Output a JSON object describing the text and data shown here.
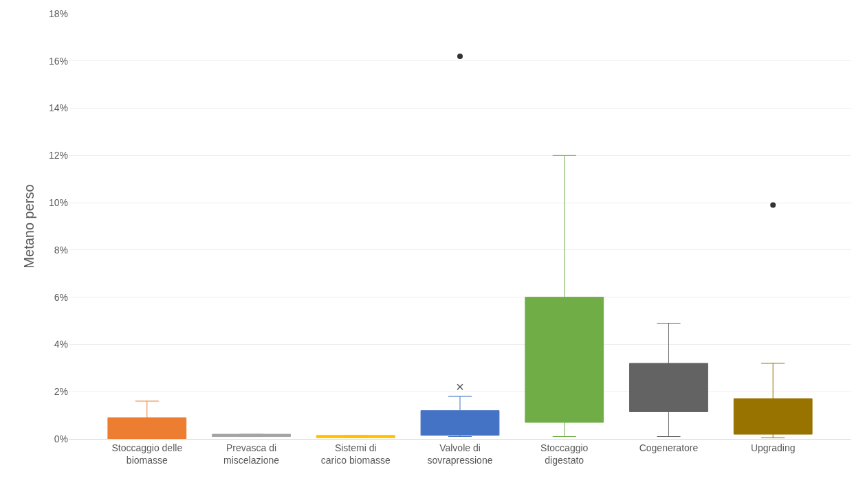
{
  "chart_data": {
    "type": "box",
    "ylabel": "Metano perso",
    "categories": [
      "Stoccaggio delle biomasse",
      "Prevasca di miscelazione",
      "Sistemi di carico biomasse",
      "Valvole di sovrapressione",
      "Stoccaggio digestato",
      "Cogeneratore",
      "Upgrading"
    ],
    "colors": [
      "#ed7d31",
      "#a5a5a5",
      "#ffc000",
      "#4472c4",
      "#70ad47",
      "#636363",
      "#997300"
    ],
    "boxes": [
      {
        "low": 0,
        "q1": 0,
        "median": 0.4,
        "q3": 0.9,
        "high": 1.6
      },
      {
        "low": 0.1,
        "q1": 0.1,
        "median": 0.15,
        "q3": 0.2,
        "high": 0.2
      },
      {
        "low": 0.05,
        "q1": 0.05,
        "median": 0.1,
        "q3": 0.15,
        "high": 0.15
      },
      {
        "low": 0.1,
        "q1": 0.15,
        "median": 0.6,
        "q3": 1.2,
        "high": 1.8,
        "mean": 2.2,
        "outliers": [
          16.2
        ]
      },
      {
        "low": 0.1,
        "q1": 0.7,
        "median": 3,
        "q3": 6,
        "high": 12
      },
      {
        "low": 0.1,
        "q1": 1.15,
        "median": 2,
        "q3": 3.2,
        "high": 4.9
      },
      {
        "low": 0.05,
        "q1": 0.2,
        "median": 0.9,
        "q3": 1.7,
        "high": 3.2,
        "outliers": [
          9.9
        ]
      }
    ],
    "ylim": [
      0,
      18
    ],
    "yticks": [
      {
        "value": 0,
        "label": "0%"
      },
      {
        "value": 2,
        "label": "2%"
      },
      {
        "value": 4,
        "label": "4%"
      },
      {
        "value": 6,
        "label": "6%"
      },
      {
        "value": 8,
        "label": "8%"
      },
      {
        "value": 10,
        "label": "10%"
      },
      {
        "value": 12,
        "label": "12%"
      },
      {
        "value": 14,
        "label": "14%"
      },
      {
        "value": 16,
        "label": "16%"
      },
      {
        "value": 18,
        "label": "18%"
      }
    ],
    "grid": "y"
  }
}
